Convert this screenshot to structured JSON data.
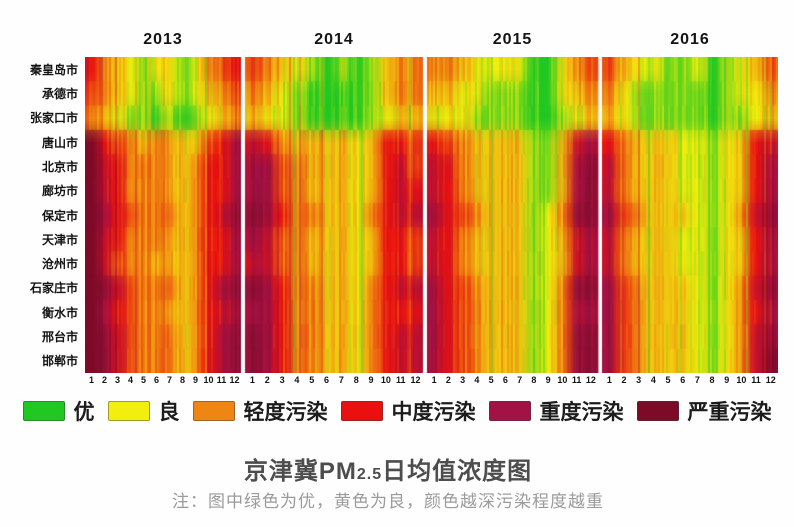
{
  "figure": {
    "title_prefix": "京津冀PM",
    "title_sub": "2.5",
    "title_suffix": "日均值浓度图",
    "note": "注：图中绿色为优，黄色为良，颜色越深污染程度越重"
  },
  "axes": {
    "years": [
      "2013",
      "2014",
      "2015",
      "2016"
    ],
    "months": [
      "1",
      "2",
      "3",
      "4",
      "5",
      "6",
      "7",
      "8",
      "9",
      "10",
      "11",
      "12"
    ],
    "cities": [
      "秦皇岛市",
      "承德市",
      "张家口市",
      "唐山市",
      "北京市",
      "廊坊市",
      "保定市",
      "天津市",
      "沧州市",
      "石家庄市",
      "衡水市",
      "邢台市",
      "邯郸市"
    ]
  },
  "legend": {
    "items": [
      {
        "label": "优",
        "color": "#22c822"
      },
      {
        "label": "良",
        "color": "#f2ee0d"
      },
      {
        "label": "轻度污染",
        "color": "#ef8512"
      },
      {
        "label": "中度污染",
        "color": "#ea1010"
      },
      {
        "label": "重度污染",
        "color": "#a31245"
      },
      {
        "label": "严重污染",
        "color": "#7c0b28"
      }
    ]
  },
  "chart_data": {
    "type": "heatmap",
    "title": "京津冀PM2.5日均值浓度图",
    "note": "注：图中绿色为优，黄色为良，颜色越深污染程度越重",
    "x_groups": [
      "2013",
      "2014",
      "2015",
      "2016"
    ],
    "x_ticks_per_group": [
      "1",
      "2",
      "3",
      "4",
      "5",
      "6",
      "7",
      "8",
      "9",
      "10",
      "11",
      "12"
    ],
    "y_categories": [
      "秦皇岛市",
      "承德市",
      "张家口市",
      "唐山市",
      "北京市",
      "廊坊市",
      "保定市",
      "天津市",
      "沧州市",
      "石家庄市",
      "衡水市",
      "邢台市",
      "邯郸市"
    ],
    "value_scale": {
      "0": "优",
      "1": "良",
      "2": "轻度污染",
      "3": "中度污染",
      "4": "重度污染",
      "5": "严重污染"
    },
    "level_colors": [
      "#22c822",
      "#f2ee0d",
      "#ef8512",
      "#ea1010",
      "#a31245",
      "#7c0b28"
    ],
    "legend_position": "bottom",
    "grid": false,
    "series": [
      {
        "city": "秦皇岛市",
        "values": {
          "2013": [
            3,
            2,
            1.5,
            1,
            0.5,
            1,
            1,
            0.5,
            1,
            2,
            2.5,
            3
          ],
          "2014": [
            2.5,
            2,
            1.5,
            1,
            0.5,
            0,
            0.5,
            0,
            0.5,
            1.5,
            2,
            2
          ],
          "2015": [
            2,
            2,
            1.5,
            1,
            1,
            1,
            1,
            0,
            0,
            1,
            2,
            2.5
          ],
          "2016": [
            2.5,
            1.5,
            1,
            1,
            0.5,
            0.5,
            1,
            0,
            0.5,
            1,
            1.5,
            2.5
          ]
        }
      },
      {
        "city": "承德市",
        "values": {
          "2013": [
            2.5,
            2,
            1.5,
            1,
            0.5,
            0.5,
            1,
            0.5,
            1,
            1.5,
            2,
            2.5
          ],
          "2014": [
            2,
            1.5,
            1,
            0.5,
            0,
            0,
            0,
            0,
            0.5,
            1.5,
            2,
            2
          ],
          "2015": [
            1.5,
            1.5,
            1,
            1,
            0.5,
            0.5,
            0.5,
            0,
            0,
            1,
            1.5,
            2
          ],
          "2016": [
            2,
            1,
            0.5,
            0.5,
            0.5,
            0.5,
            0.5,
            0,
            0.5,
            1,
            1,
            2
          ]
        }
      },
      {
        "city": "张家口市",
        "values": {
          "2013": [
            2,
            1.5,
            1,
            0.5,
            0.5,
            0,
            0.5,
            0,
            0.5,
            1,
            1.5,
            2
          ],
          "2014": [
            1.5,
            1,
            1,
            0.5,
            0,
            0,
            0,
            0,
            0.5,
            1,
            1.5,
            1.5
          ],
          "2015": [
            1,
            1,
            1,
            0.5,
            0.5,
            0.5,
            0.5,
            0,
            0,
            0.5,
            1,
            1.5
          ],
          "2016": [
            1.5,
            1,
            0.5,
            0.5,
            0.5,
            0.5,
            0.5,
            0,
            0.5,
            0.5,
            1,
            1.5
          ]
        }
      },
      {
        "city": "唐山市",
        "values": {
          "2013": [
            5,
            3,
            2.5,
            2,
            1.5,
            2,
            1.5,
            1.5,
            1.5,
            2.5,
            3,
            4
          ],
          "2014": [
            3.5,
            3,
            2,
            1.5,
            1.5,
            1.5,
            1.5,
            1,
            1.5,
            3,
            3,
            2.5
          ],
          "2015": [
            3,
            2.5,
            2,
            1.5,
            1.5,
            1.5,
            1.5,
            0.5,
            0.5,
            1.5,
            3.5,
            4
          ],
          "2016": [
            3,
            2,
            1.5,
            1.5,
            1.5,
            1,
            1,
            0.5,
            1,
            1.5,
            3,
            3.5
          ]
        }
      },
      {
        "city": "北京市",
        "values": {
          "2013": [
            5,
            3.5,
            3,
            2,
            2,
            2,
            1.5,
            1.5,
            2,
            3,
            3,
            4
          ],
          "2014": [
            4,
            4,
            2.5,
            2,
            1.5,
            1.5,
            1.5,
            1,
            1.5,
            3,
            3.5,
            2.5
          ],
          "2015": [
            3.5,
            3,
            2,
            1.5,
            1.5,
            1.5,
            1.5,
            0.5,
            0.5,
            1.5,
            4,
            4.5
          ],
          "2016": [
            3.5,
            2,
            1.5,
            1.5,
            1.5,
            1,
            1,
            0.5,
            1,
            1.5,
            3,
            4
          ]
        }
      },
      {
        "city": "廊坊市",
        "values": {
          "2013": [
            5,
            3.5,
            3,
            2,
            2,
            2,
            1.5,
            1.5,
            2,
            3,
            3,
            4
          ],
          "2014": [
            4,
            4,
            2.5,
            2,
            1.5,
            1.5,
            1.5,
            1,
            1.5,
            3,
            3.5,
            3
          ],
          "2015": [
            3.5,
            3,
            2,
            1.5,
            1.5,
            1.5,
            1.5,
            0.5,
            0.5,
            1.5,
            4,
            4.5
          ],
          "2016": [
            3.5,
            2,
            1.5,
            1.5,
            1.5,
            1,
            1,
            0.5,
            1,
            1.5,
            3,
            4
          ]
        }
      },
      {
        "city": "保定市",
        "values": {
          "2013": [
            5,
            4,
            3,
            2.5,
            2,
            2,
            2,
            1.5,
            2,
            3,
            3.5,
            4.5
          ],
          "2014": [
            4.5,
            4,
            3,
            2,
            2,
            1.5,
            1.5,
            1,
            2,
            3,
            3.5,
            3.5
          ],
          "2015": [
            4,
            3,
            2.5,
            2,
            1.5,
            1.5,
            1.5,
            0.5,
            1,
            2,
            4.5,
            4.5
          ],
          "2016": [
            4,
            2.5,
            2,
            1.5,
            1.5,
            1.5,
            1,
            0.5,
            1,
            2,
            3.5,
            4.5
          ]
        }
      },
      {
        "city": "天津市",
        "values": {
          "2013": [
            5,
            3.5,
            3,
            2,
            2,
            2,
            1.5,
            1.5,
            2,
            3,
            3,
            4
          ],
          "2014": [
            4,
            3.5,
            2.5,
            2,
            1.5,
            1.5,
            1.5,
            1,
            1.5,
            3,
            3,
            2.5
          ],
          "2015": [
            3.5,
            3,
            2,
            1.5,
            1.5,
            1.5,
            1.5,
            0.5,
            1,
            1.5,
            3.5,
            4
          ],
          "2016": [
            3.5,
            2,
            1.5,
            1.5,
            1.5,
            1,
            1,
            0.5,
            1,
            1.5,
            3,
            4
          ]
        }
      },
      {
        "city": "沧州市",
        "values": {
          "2013": [
            5,
            3.5,
            2.5,
            2,
            2,
            1.5,
            1.5,
            1.5,
            2,
            3,
            3,
            4
          ],
          "2014": [
            3.5,
            3.5,
            2.5,
            2,
            1.5,
            1.5,
            1.5,
            1,
            1.5,
            3,
            3,
            2.5
          ],
          "2015": [
            3.5,
            3,
            2,
            1.5,
            1.5,
            1.5,
            1.5,
            0.5,
            1,
            1.5,
            3.5,
            4
          ],
          "2016": [
            3.5,
            2,
            1.5,
            1.5,
            1.5,
            1,
            1,
            0.5,
            1,
            1.5,
            3,
            4
          ]
        }
      },
      {
        "city": "石家庄市",
        "values": {
          "2013": [
            5,
            4.5,
            3.5,
            2.5,
            2,
            2,
            2,
            1.5,
            2,
            3,
            4,
            4.5
          ],
          "2014": [
            4.5,
            4,
            3,
            2,
            2,
            1.5,
            1.5,
            1,
            2,
            3,
            3.5,
            3.5
          ],
          "2015": [
            4,
            3,
            2.5,
            2,
            1.5,
            1.5,
            1.5,
            0.5,
            1,
            2,
            4.5,
            4.5
          ],
          "2016": [
            4,
            2.5,
            2,
            1.5,
            1.5,
            1.5,
            1,
            0.5,
            1,
            2,
            3.5,
            4.5
          ]
        }
      },
      {
        "city": "衡水市",
        "values": {
          "2013": [
            5,
            4,
            3,
            2.5,
            2,
            2,
            1.5,
            1.5,
            2,
            3,
            3.5,
            4
          ],
          "2014": [
            4,
            4,
            3,
            2,
            2,
            1.5,
            1.5,
            1,
            2,
            3,
            3,
            3
          ],
          "2015": [
            4,
            3,
            2.5,
            2,
            1.5,
            1.5,
            1.5,
            0.5,
            1,
            2,
            4,
            4
          ],
          "2016": [
            4,
            2.5,
            2,
            1.5,
            1.5,
            1.5,
            1,
            0.5,
            1,
            2,
            3,
            4
          ]
        }
      },
      {
        "city": "邢台市",
        "values": {
          "2013": [
            5,
            4.5,
            3.5,
            2.5,
            2,
            2,
            2,
            1.5,
            2,
            3,
            4,
            4.5
          ],
          "2014": [
            4.5,
            4,
            3,
            2,
            2,
            1.5,
            1.5,
            1,
            2,
            3,
            3.5,
            3.5
          ],
          "2015": [
            4,
            3,
            2.5,
            2,
            1.5,
            1.5,
            1.5,
            0.5,
            1,
            2,
            4.5,
            4.5
          ],
          "2016": [
            4,
            2.5,
            2,
            1.5,
            1.5,
            1.5,
            1,
            0.5,
            1,
            2,
            3.5,
            4.5
          ]
        }
      },
      {
        "city": "邯郸市",
        "values": {
          "2013": [
            5,
            4.5,
            3.5,
            2.5,
            2,
            2,
            2,
            1.5,
            2,
            3,
            4,
            4.5
          ],
          "2014": [
            4.5,
            4,
            3,
            2,
            2,
            1.5,
            1.5,
            1,
            2,
            3,
            3.5,
            3.5
          ],
          "2015": [
            4,
            3,
            2.5,
            2,
            1.5,
            1.5,
            1.5,
            0.5,
            1,
            2,
            4.5,
            4.5
          ],
          "2016": [
            4,
            2.5,
            2,
            1.5,
            1.5,
            1.5,
            1,
            0.5,
            1,
            2,
            3.5,
            5
          ]
        }
      }
    ]
  }
}
